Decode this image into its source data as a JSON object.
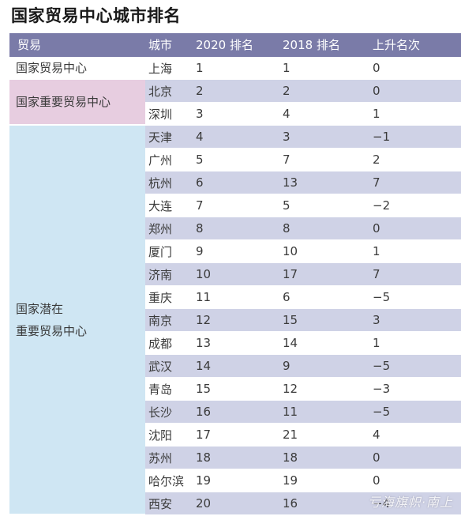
{
  "title": "国家贸易中心城市排名",
  "headers": {
    "tier": "贸易",
    "city": "城市",
    "rank2020": "2020 排名",
    "rank2018": "2018 排名",
    "change": "上升名次"
  },
  "tiers": [
    {
      "label_lines": [
        "国家贸易中心"
      ]
    },
    {
      "label_lines": [
        "国家重要贸易中心"
      ]
    },
    {
      "label_lines": [
        "国家潜在",
        "重要贸易中心"
      ]
    }
  ],
  "rows": [
    {
      "city": "上海",
      "rank2020": "1",
      "rank2018": "1",
      "change": "0"
    },
    {
      "city": "北京",
      "rank2020": "2",
      "rank2018": "2",
      "change": "0"
    },
    {
      "city": "深圳",
      "rank2020": "3",
      "rank2018": "4",
      "change": "1"
    },
    {
      "city": "天津",
      "rank2020": "4",
      "rank2018": "3",
      "change": "−1"
    },
    {
      "city": "广州",
      "rank2020": "5",
      "rank2018": "7",
      "change": "2"
    },
    {
      "city": "杭州",
      "rank2020": "6",
      "rank2018": "13",
      "change": "7"
    },
    {
      "city": "大连",
      "rank2020": "7",
      "rank2018": "5",
      "change": "−2"
    },
    {
      "city": "郑州",
      "rank2020": "8",
      "rank2018": "8",
      "change": "0"
    },
    {
      "city": "厦门",
      "rank2020": "9",
      "rank2018": "10",
      "change": "1"
    },
    {
      "city": "济南",
      "rank2020": "10",
      "rank2018": "17",
      "change": "7"
    },
    {
      "city": "重庆",
      "rank2020": "11",
      "rank2018": "6",
      "change": "−5"
    },
    {
      "city": "南京",
      "rank2020": "12",
      "rank2018": "15",
      "change": "3"
    },
    {
      "city": "成都",
      "rank2020": "13",
      "rank2018": "14",
      "change": "1"
    },
    {
      "city": "武汉",
      "rank2020": "14",
      "rank2018": "9",
      "change": "−5"
    },
    {
      "city": "青岛",
      "rank2020": "15",
      "rank2018": "12",
      "change": "−3"
    },
    {
      "city": "长沙",
      "rank2020": "16",
      "rank2018": "11",
      "change": "−5"
    },
    {
      "city": "沈阳",
      "rank2020": "17",
      "rank2018": "21",
      "change": "4"
    },
    {
      "city": "苏州",
      "rank2020": "18",
      "rank2018": "18",
      "change": "0"
    },
    {
      "city": "哈尔滨",
      "rank2020": "19",
      "rank2018": "19",
      "change": "0"
    },
    {
      "city": "西安",
      "rank2020": "20",
      "rank2018": "16",
      "change": "−4"
    }
  ],
  "watermark": "亏海旗帜·南上",
  "colors": {
    "header_bg": "#7a7ba8",
    "tier2_bg": "#e7cde0",
    "tier3_bg": "#cfe6f3",
    "row_alt_bg": "#cfd2e6"
  }
}
